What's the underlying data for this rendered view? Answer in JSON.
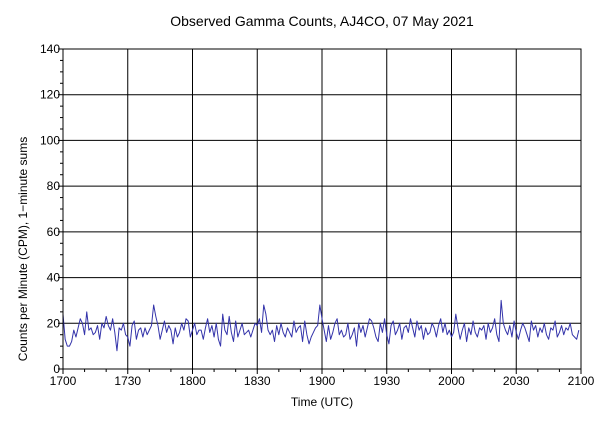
{
  "chart_data": {
    "type": "line",
    "title": "Observed Gamma Counts, AJ4CO, 07 May 2021",
    "xlabel": "Time (UTC)",
    "ylabel": "Counts per Minute (CPM), 1−minute sums",
    "x_tick_labels": [
      "1700",
      "1730",
      "1800",
      "1830",
      "1900",
      "1930",
      "2000",
      "2030",
      "2100"
    ],
    "y_ticks": [
      0,
      20,
      40,
      60,
      80,
      100,
      120,
      140
    ],
    "xlim_minutes": [
      0,
      240
    ],
    "ylim": [
      0,
      140
    ],
    "grid": true,
    "series_color": "#3333aa",
    "series": [
      {
        "x_start": "1700",
        "x_step_minutes": 1,
        "values": [
          24,
          13,
          10,
          10,
          12,
          17,
          14,
          18,
          22,
          20,
          15,
          25,
          17,
          18,
          15,
          16,
          19,
          13,
          20,
          18,
          23,
          19,
          17,
          22,
          16,
          8,
          18,
          17,
          20,
          15,
          14,
          10,
          19,
          21,
          13,
          17,
          18,
          14,
          18,
          15,
          17,
          19,
          28,
          23,
          19,
          13,
          17,
          21,
          16,
          19,
          17,
          11,
          18,
          14,
          16,
          20,
          17,
          22,
          21,
          14,
          17,
          20,
          15,
          17,
          17,
          13,
          18,
          22,
          16,
          19,
          14,
          20,
          13,
          10,
          24,
          17,
          15,
          23,
          16,
          12,
          21,
          14,
          17,
          20,
          15,
          16,
          17,
          14,
          17,
          20,
          19,
          22,
          16,
          28,
          24,
          17,
          15,
          17,
          12,
          19,
          15,
          20,
          16,
          14,
          18,
          16,
          14,
          21,
          16,
          18,
          19,
          12,
          21,
          15,
          11,
          14,
          16,
          18,
          19,
          28,
          22,
          17,
          12,
          19,
          13,
          16,
          20,
          22,
          15,
          17,
          14,
          15,
          20,
          13,
          15,
          18,
          10,
          20,
          16,
          19,
          14,
          18,
          22,
          21,
          18,
          14,
          12,
          20,
          16,
          22,
          15,
          11,
          19,
          21,
          15,
          17,
          20,
          13,
          18,
          19,
          16,
          22,
          18,
          14,
          21,
          17,
          19,
          13,
          18,
          15,
          16,
          20,
          18,
          14,
          19,
          22,
          16,
          20,
          15,
          17,
          14,
          16,
          24,
          18,
          13,
          17,
          20,
          12,
          18,
          15,
          21,
          16,
          14,
          18,
          17,
          19,
          13,
          20,
          16,
          18,
          22,
          15,
          12,
          30,
          20,
          17,
          15,
          19,
          14,
          21,
          16,
          13,
          17,
          20,
          18,
          15,
          12,
          21,
          17,
          19,
          14,
          18,
          16,
          20,
          15,
          13,
          18,
          17,
          21,
          14,
          16,
          19,
          15,
          18,
          17,
          20,
          15,
          14,
          13,
          17
        ]
      }
    ]
  }
}
